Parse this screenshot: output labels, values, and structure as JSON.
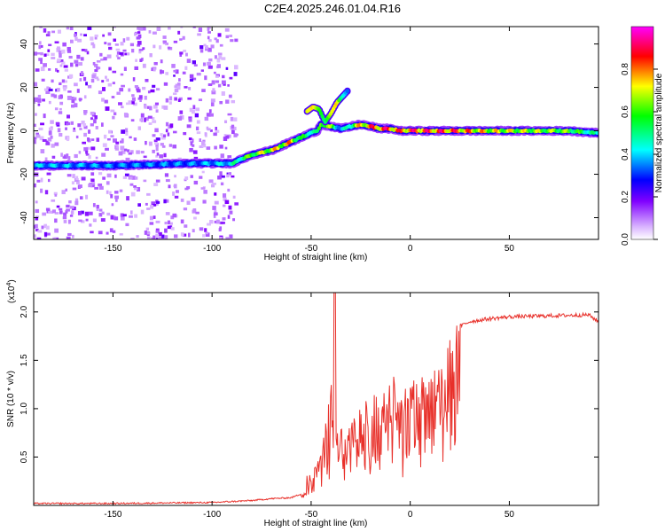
{
  "title": "C2E4.2025.246.01.04.R16",
  "chart_data": [
    {
      "type": "heatmap",
      "xlabel": "Height of straight line (km)",
      "ylabel": "Frequency (Hz)",
      "xlim": [
        -190,
        95
      ],
      "ylim": [
        -50,
        48
      ],
      "xticks": [
        -150,
        -100,
        -50,
        0,
        50
      ],
      "yticks": [
        -40,
        -20,
        0,
        20,
        40
      ],
      "colorbar": {
        "label": "Normalized spectral amplitude",
        "range": [
          0.0,
          1.0
        ],
        "ticks": [
          0.0,
          0.2,
          0.4,
          0.6,
          0.8
        ],
        "colormap": [
          "#ffffff",
          "#8000ff",
          "#0000ff",
          "#00ffff",
          "#00ff00",
          "#ffff00",
          "#ff0000",
          "#ff00ff"
        ]
      },
      "trace": {
        "x": [
          -190,
          -150,
          -110,
          -95,
          -90,
          -85,
          -80,
          -75,
          -70,
          -65,
          -60,
          -55,
          -50,
          -47,
          -45,
          -40,
          -35,
          -30,
          -25,
          -20,
          -15,
          -10,
          -5,
          0,
          10,
          20,
          40,
          60,
          80,
          95
        ],
        "y": [
          -16,
          -16,
          -15,
          -15,
          -15,
          -13,
          -11,
          -10,
          -9,
          -7,
          -5,
          -3,
          -1,
          0,
          3,
          2,
          1,
          2,
          3,
          2,
          1,
          1,
          0,
          0,
          0,
          0,
          0,
          0,
          0,
          -1
        ],
        "amplitude": [
          0.45,
          0.4,
          0.4,
          0.45,
          0.5,
          0.6,
          0.7,
          0.75,
          0.8,
          0.8,
          0.85,
          0.6,
          0.6,
          0.5,
          0.8,
          0.7,
          0.4,
          0.6,
          0.85,
          0.9,
          0.95,
          0.95,
          0.9,
          0.95,
          0.95,
          0.95,
          0.8,
          0.75,
          0.7,
          0.5
        ]
      },
      "branch": {
        "x": [
          -52,
          -49,
          -46,
          -43,
          -40,
          -37,
          -35,
          -33,
          -31
        ],
        "y": [
          9,
          11,
          10,
          4,
          8,
          13,
          15,
          17,
          19
        ],
        "amplitude": [
          0.7,
          0.75,
          0.6,
          0.5,
          0.7,
          0.75,
          0.5,
          0.4,
          0.3
        ]
      },
      "noise_region_x": [
        -190,
        -88
      ]
    },
    {
      "type": "line",
      "xlabel": "Height of straight line (km)",
      "ylabel": "SNR (10 * v/v)",
      "exponent_label": "(x10",
      "exponent": "4",
      "exponent_close": ")",
      "xlim": [
        -190,
        95
      ],
      "ylim": [
        0,
        2.2
      ],
      "xticks": [
        -150,
        -100,
        -50,
        0,
        50
      ],
      "yticks": [
        0.5,
        1.0,
        1.5,
        2.0
      ],
      "ytick_labels": [
        "0.5",
        "1.0",
        "1.5",
        "2.0"
      ],
      "color": "#e8302a",
      "envelope_x": [
        -190,
        -150,
        -100,
        -90,
        -80,
        -70,
        -60,
        -55,
        -50,
        -45,
        -42,
        -40,
        -38,
        -35,
        -30,
        -25,
        -20,
        -15,
        -10,
        -5,
        0,
        5,
        10,
        15,
        20,
        25,
        30,
        40,
        50,
        70,
        90,
        95
      ],
      "envelope_y": [
        0.02,
        0.02,
        0.03,
        0.04,
        0.05,
        0.07,
        0.08,
        0.12,
        0.35,
        0.55,
        0.9,
        1.4,
        0.7,
        0.8,
        0.85,
        1.0,
        1.1,
        1.2,
        1.3,
        1.2,
        1.35,
        1.35,
        1.45,
        1.5,
        1.7,
        1.85,
        1.9,
        1.93,
        1.95,
        1.96,
        1.97,
        1.9
      ],
      "spike": {
        "x": -38,
        "y": 2.2
      }
    }
  ]
}
